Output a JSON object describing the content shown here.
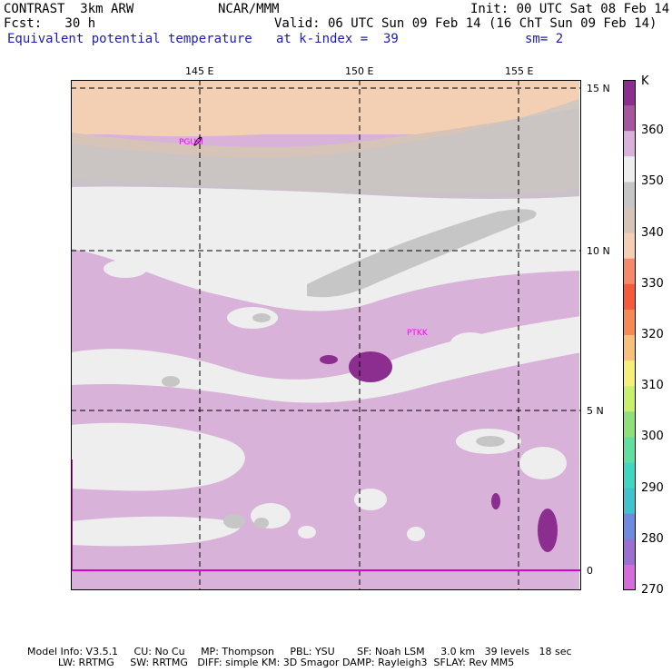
{
  "header": {
    "model": "CONTRAST  3km ARW",
    "center": "NCAR/MMM",
    "init": "Init: 00 UTC Sat 08 Feb 14",
    "fcst": "Fcst:   30 h",
    "valid": "Valid: 06 UTC Sun 09 Feb 14 (16 ChT Sun 09 Feb 14)",
    "field": "Equivalent potential temperature",
    "level": "at k-index =  39",
    "smooth": "sm= 2"
  },
  "map": {
    "lon_labels": [
      "145 E",
      "150 E",
      "155 E"
    ],
    "lat_labels": [
      "15 N",
      "10 N",
      "5 N",
      "0"
    ],
    "stations": [
      "PGUM",
      "PTKK"
    ]
  },
  "colorbar": {
    "unit": "K",
    "labels": [
      "360",
      "350",
      "340",
      "330",
      "320",
      "310",
      "300",
      "290",
      "280",
      "270"
    ],
    "colors": [
      "#8b2e8f",
      "#a6559f",
      "#d9b2d9",
      "#eeeeee",
      "#c6c6c6",
      "#d6c4b8",
      "#f5cfb3",
      "#f48a6a",
      "#f65a3c",
      "#f58a55",
      "#f7c07d",
      "#f5f07a",
      "#c9ef6e",
      "#8fe07a",
      "#5fe0a0",
      "#3fd7c1",
      "#3fc3cf",
      "#6f8be0",
      "#9c6fd3",
      "#d46cd9"
    ]
  },
  "footer": {
    "line1": "Model Info: V3.5.1     CU: No Cu     MP: Thompson     PBL: YSU       SF: Noah LSM     3.0 km   39 levels   18 sec",
    "line2": "LW: RRTMG     SW: RRTMG   DIFF: simple KM: 3D Smagor DAMP: Rayleigh3  SFLAY: Rev MM5"
  }
}
